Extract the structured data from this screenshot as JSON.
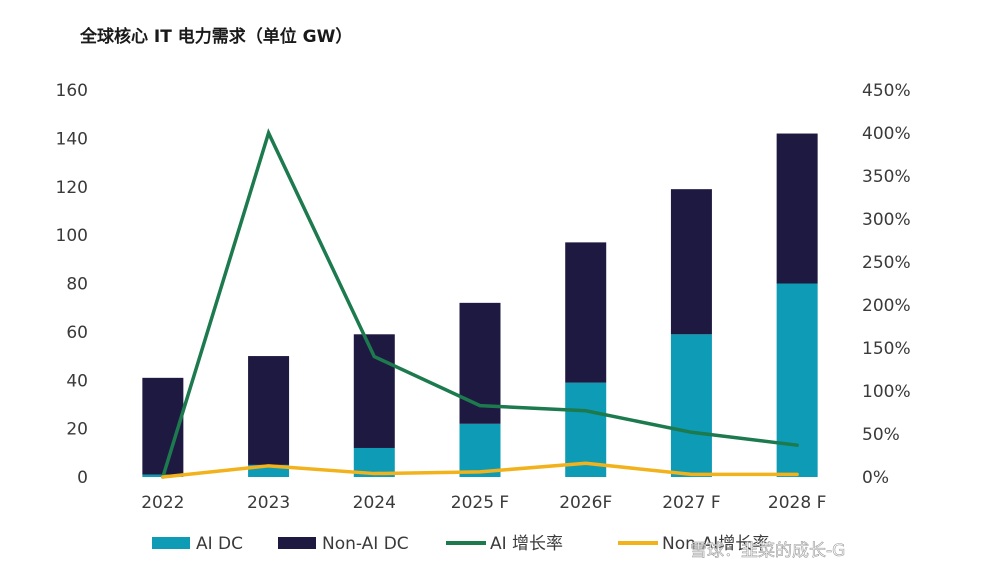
{
  "chart_data": {
    "type": "bar",
    "title": "全球核心 IT 电力需求（单位 GW）",
    "categories": [
      "2022",
      "2023",
      "2024",
      "2025 F",
      "2026F",
      "2027 F",
      "2028 F"
    ],
    "series": [
      {
        "name": "AI DC",
        "kind": "bar",
        "axis": "left",
        "color": "#0E9BB5",
        "values": [
          1,
          5,
          12,
          22,
          39,
          59,
          80
        ]
      },
      {
        "name": "Non-AI DC",
        "kind": "bar",
        "axis": "left",
        "color": "#1E1940",
        "values": [
          40,
          45,
          47,
          50,
          58,
          60,
          62
        ]
      },
      {
        "name": "AI 增长率",
        "kind": "line",
        "axis": "right",
        "color": "#1C7A4E",
        "values": [
          0,
          400,
          140,
          83,
          77,
          52,
          37
        ]
      },
      {
        "name": "Non-AI增长率",
        "kind": "line",
        "axis": "right",
        "color": "#F2B21C",
        "values": [
          0,
          13,
          4,
          6,
          16,
          3,
          3
        ]
      }
    ],
    "stacked": true,
    "ylim_left": [
      0,
      160
    ],
    "yticks_left": [
      "0",
      "20",
      "40",
      "60",
      "80",
      "100",
      "120",
      "140",
      "160"
    ],
    "ylim_right": [
      0,
      450
    ],
    "yticks_right": [
      "0%",
      "50%",
      "100%",
      "150%",
      "200%",
      "250%",
      "300%",
      "350%",
      "400%",
      "450%"
    ],
    "grid": false,
    "legend_position": "bottom"
  },
  "watermark": "雪球：韭菜的成长-G"
}
